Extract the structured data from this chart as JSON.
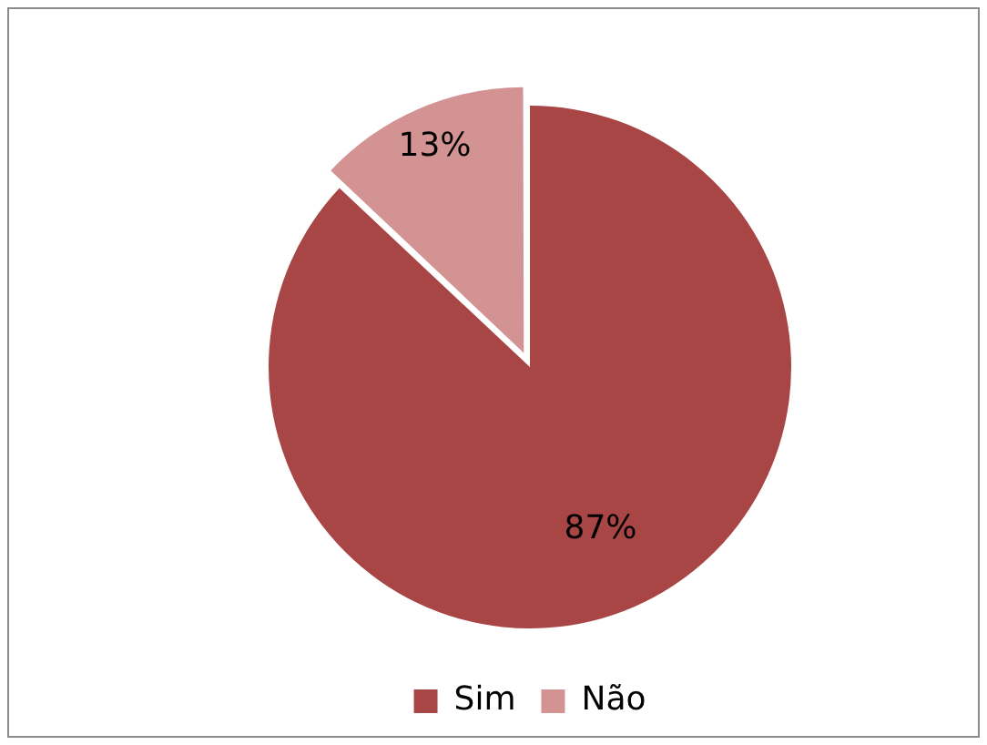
{
  "chart_data": {
    "type": "pie",
    "categories": [
      "Sim",
      "Não"
    ],
    "values": [
      87,
      13
    ],
    "colors": [
      "#a84545",
      "#d49393"
    ],
    "value_labels": [
      "87%",
      "13%"
    ],
    "legend": "bottom"
  }
}
